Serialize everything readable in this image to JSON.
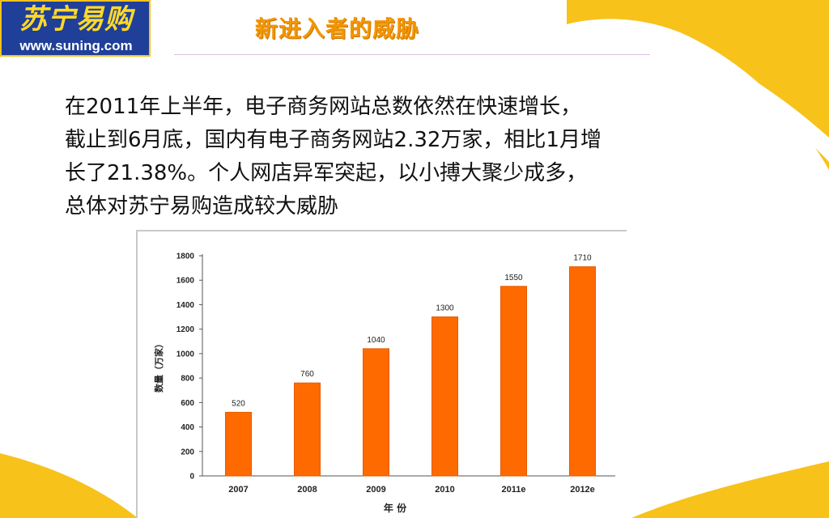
{
  "logo": {
    "brand": "苏宁易购",
    "url": "www.suning.com"
  },
  "title": "新进入者的威胁",
  "paragraph_lines": [
    "在2011年上半年，电子商务网站总数依然在快速增长，",
    "截止到6月底，国内有电子商务网站2.32万家，相比1月增",
    "长了21.38%。个人网店异军突起，以小搏大聚少成多，",
    "总体对苏宁易购造成较大威胁"
  ],
  "colors": {
    "bar": "#ff6a00",
    "bar_edge": "#e45a00",
    "title": "#f39600",
    "logo_bg": "#1f3f99",
    "logo_text": "#ffd928",
    "yellow_swoosh": "#f7c21a"
  },
  "chart_data": {
    "type": "bar",
    "categories": [
      "2007",
      "2008",
      "2009",
      "2010",
      "2011e",
      "2012e"
    ],
    "values": [
      520,
      760,
      1040,
      1300,
      1550,
      1710
    ],
    "data_labels": [
      "520",
      "760",
      "1040",
      "1300",
      "1550",
      "1710"
    ],
    "ylabel": "数量（万家）",
    "xlabel": "年 份",
    "ylim": [
      0,
      1800
    ],
    "yticks": [
      0,
      200,
      400,
      600,
      800,
      1000,
      1200,
      1400,
      1600,
      1800
    ],
    "ytick_labels": [
      "0",
      "200",
      "400",
      "600",
      "800",
      "1000",
      "1200",
      "1400",
      "1600",
      "1800"
    ],
    "grid": false,
    "legend": "none"
  }
}
